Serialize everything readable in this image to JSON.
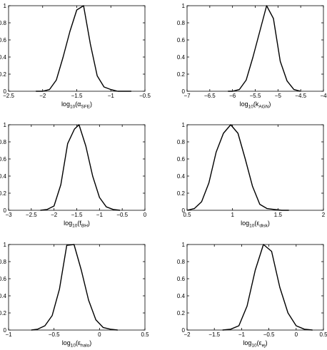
{
  "chart_data": [
    {
      "type": "line",
      "xlabel": {
        "base": "log",
        "sub": "10",
        "mid": "(α",
        "varsub": "SFE",
        "end": ")"
      },
      "xlim": [
        -2.5,
        -0.5
      ],
      "ylim": [
        0,
        1
      ],
      "xticks": [
        -2.5,
        -2,
        -1.5,
        -1,
        -0.5
      ],
      "xtick_labels": [
        "−2.5",
        "−2",
        "−1.5",
        "−1",
        "−0.5"
      ],
      "yticks": [
        0,
        0.2,
        0.4,
        0.6,
        0.8,
        1
      ],
      "ytick_labels": [
        "0",
        "0.2",
        "0.4",
        "0.6",
        "0.8",
        "1"
      ],
      "x": [
        -2.1,
        -2.0,
        -1.9,
        -1.8,
        -1.7,
        -1.6,
        -1.5,
        -1.4,
        -1.3,
        -1.2,
        -1.1,
        -1.0,
        -0.9,
        -0.8,
        -0.7
      ],
      "y": [
        0,
        0,
        0.02,
        0.13,
        0.4,
        0.7,
        0.95,
        1.0,
        0.55,
        0.18,
        0.05,
        0.02,
        0,
        0,
        0
      ]
    },
    {
      "type": "line",
      "xlabel": {
        "base": "log",
        "sub": "10",
        "mid": "(k",
        "varsub": "AGN",
        "end": ")"
      },
      "xlim": [
        -7,
        -4
      ],
      "ylim": [
        0,
        1
      ],
      "xticks": [
        -7,
        -6.5,
        -6,
        -5.5,
        -5,
        -4.5,
        -4
      ],
      "xtick_labels": [
        "−7",
        "−6.5",
        "−6",
        "−5.5",
        "−5",
        "−4.5",
        "−4"
      ],
      "yticks": [
        0,
        0.2,
        0.4,
        0.6,
        0.8,
        1
      ],
      "ytick_labels": [
        "0",
        "0.2",
        "0.4",
        "0.6",
        "0.8",
        "1"
      ],
      "x": [
        -6.1,
        -6.0,
        -5.85,
        -5.7,
        -5.55,
        -5.4,
        -5.25,
        -5.1,
        -4.95,
        -4.8,
        -4.65,
        -4.5
      ],
      "y": [
        0,
        0,
        0.02,
        0.13,
        0.4,
        0.7,
        1.0,
        0.85,
        0.35,
        0.12,
        0.02,
        0
      ]
    },
    {
      "type": "line",
      "xlabel": {
        "base": "log",
        "sub": "10",
        "mid": "(f",
        "varsub": "BH",
        "end": ")"
      },
      "xlim": [
        -3,
        0
      ],
      "ylim": [
        0,
        1
      ],
      "xticks": [
        -3,
        -2.5,
        -2,
        -1.5,
        -1,
        -0.5,
        0
      ],
      "xtick_labels": [
        "−3",
        "−2.5",
        "−2",
        "−1.5",
        "−1",
        "−0.5",
        "0"
      ],
      "yticks": [
        0,
        0.2,
        0.4,
        0.6,
        0.8,
        1
      ],
      "ytick_labels": [
        "0",
        "0.2",
        "0.4",
        "0.6",
        "0.8",
        "1"
      ],
      "x": [
        -2.3,
        -2.15,
        -2.0,
        -1.85,
        -1.7,
        -1.55,
        -1.45,
        -1.3,
        -1.15,
        -1.0,
        -0.85,
        -0.7,
        -0.55
      ],
      "y": [
        0,
        0.01,
        0.05,
        0.3,
        0.78,
        0.95,
        1.0,
        0.75,
        0.4,
        0.15,
        0.04,
        0.01,
        0
      ]
    },
    {
      "type": "line",
      "xlabel": {
        "base": "log",
        "sub": "10",
        "mid": "(ε",
        "varsub": "disk",
        "end": ")"
      },
      "xlim": [
        0.5,
        2
      ],
      "ylim": [
        0,
        1
      ],
      "xticks": [
        0.5,
        1,
        1.5,
        2
      ],
      "xtick_labels": [
        "0.5",
        "1",
        "1.5",
        "2"
      ],
      "yticks": [
        0,
        0.2,
        0.4,
        0.6,
        0.8,
        1
      ],
      "ytick_labels": [
        "0",
        "0.2",
        "0.4",
        "0.6",
        "0.8",
        "1"
      ],
      "x": [
        0.5,
        0.58,
        0.66,
        0.74,
        0.82,
        0.9,
        0.98,
        1.06,
        1.14,
        1.22,
        1.3,
        1.38,
        1.46,
        1.54,
        1.62
      ],
      "y": [
        0,
        0.02,
        0.1,
        0.32,
        0.68,
        0.9,
        1.0,
        0.9,
        0.6,
        0.28,
        0.07,
        0.02,
        0.01,
        0,
        0
      ]
    },
    {
      "type": "line",
      "xlabel": {
        "base": "log",
        "sub": "10",
        "mid": "(ε",
        "varsub": "halo",
        "end": ")"
      },
      "xlim": [
        -1,
        0.5
      ],
      "ylim": [
        0,
        1
      ],
      "xticks": [
        -1,
        -0.5,
        0,
        0.5
      ],
      "xtick_labels": [
        "−1",
        "−0.5",
        "0",
        "0.5"
      ],
      "yticks": [
        0,
        0.2,
        0.4,
        0.6,
        0.8,
        1
      ],
      "ytick_labels": [
        "0",
        "0.2",
        "0.4",
        "0.6",
        "0.8",
        "1"
      ],
      "x": [
        -0.75,
        -0.68,
        -0.6,
        -0.52,
        -0.44,
        -0.36,
        -0.28,
        -0.2,
        -0.12,
        -0.04,
        0.04,
        0.12,
        0.2
      ],
      "y": [
        0,
        0.01,
        0.05,
        0.17,
        0.48,
        0.99,
        1.0,
        0.7,
        0.35,
        0.12,
        0.03,
        0.01,
        0
      ]
    },
    {
      "type": "line",
      "xlabel": {
        "base": "log",
        "sub": "10",
        "mid": "(ε",
        "varsub": "ej",
        "end": ")"
      },
      "xlim": [
        -2,
        0.5
      ],
      "ylim": [
        0,
        1
      ],
      "xticks": [
        -2,
        -1.5,
        -1,
        -0.5,
        0,
        0.5
      ],
      "xtick_labels": [
        "−2",
        "−1.5",
        "−1",
        "−0.5",
        "0",
        "0.5"
      ],
      "yticks": [
        0,
        0.2,
        0.4,
        0.6,
        0.8,
        1
      ],
      "ytick_labels": [
        "0",
        "0.2",
        "0.4",
        "0.6",
        "0.8",
        "1"
      ],
      "x": [
        -1.35,
        -1.2,
        -1.05,
        -0.9,
        -0.75,
        -0.6,
        -0.45,
        -0.3,
        -0.15,
        0.0,
        0.15,
        0.3
      ],
      "y": [
        0,
        0.01,
        0.05,
        0.28,
        0.7,
        1.0,
        0.92,
        0.5,
        0.2,
        0.05,
        0.01,
        0
      ]
    }
  ]
}
